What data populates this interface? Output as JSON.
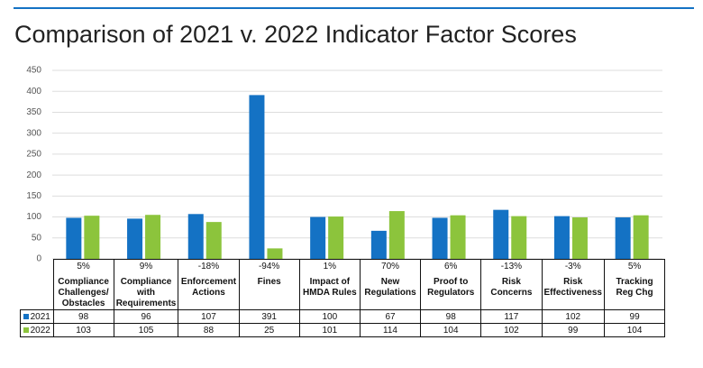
{
  "chart_data": {
    "type": "bar",
    "title": "Comparison of 2021 v. 2022 Indicator Factor Scores",
    "categories": [
      "Compliance Challenges/ Obstacles",
      "Compliance with Requirements",
      "Enforcement Actions",
      "Fines",
      "Impact of HMDA Rules",
      "New Regulations",
      "Proof to Regulators",
      "Risk Concerns",
      "Risk Effectiveness",
      "Tracking Reg Chg"
    ],
    "changes": [
      "5%",
      "9%",
      "-18%",
      "-94%",
      "1%",
      "70%",
      "6%",
      "-13%",
      "-3%",
      "5%"
    ],
    "series": [
      {
        "name": "2021",
        "color": "#1472c4",
        "values": [
          98,
          96,
          107,
          391,
          100,
          67,
          98,
          117,
          102,
          99
        ]
      },
      {
        "name": "2022",
        "color": "#8cc43c",
        "values": [
          103,
          105,
          88,
          25,
          101,
          114,
          104,
          102,
          99,
          104
        ]
      }
    ],
    "ylim": [
      0,
      450
    ],
    "yticks": [
      0,
      50,
      100,
      150,
      200,
      250,
      300,
      350,
      400,
      450
    ],
    "grid": true
  }
}
